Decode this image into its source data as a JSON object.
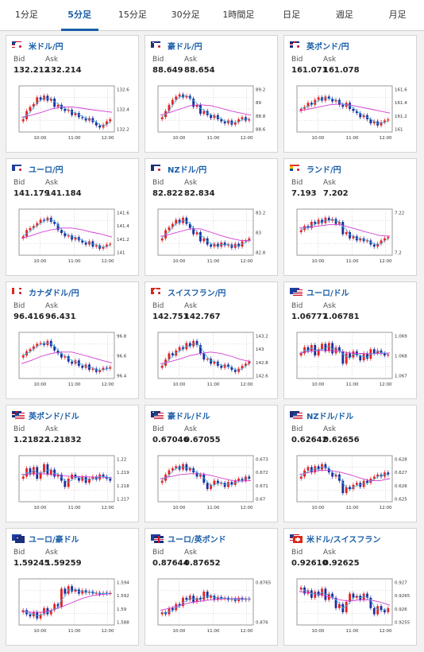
{
  "tabs": [
    "1分足",
    "5分足",
    "15分足",
    "30分足",
    "1時間足",
    "日足",
    "週足",
    "月足"
  ],
  "active_tab": 1,
  "bid_label": "Bid",
  "ask_label": "Ask",
  "colors": {
    "accent": "#1a5ea8",
    "up": "#e32222",
    "down": "#1d2d9c",
    "ma_short": "#3ab0e8",
    "ma_long": "#d23bd2"
  },
  "x_ticks": [
    "10:00",
    "11:00",
    "12:00"
  ],
  "cards": [
    {
      "pair": "米ドル/円",
      "flag": "us-jp",
      "bid": "132.212",
      "ask": "132.214",
      "y_ticks": [
        "132.6",
        "132.4",
        "132.2"
      ],
      "chart_data": {
        "type": "candlestick",
        "closes": [
          0.25,
          0.45,
          0.55,
          0.62,
          0.78,
          0.72,
          0.82,
          0.7,
          0.75,
          0.55,
          0.6,
          0.5,
          0.45,
          0.48,
          0.35,
          0.4,
          0.3,
          0.28,
          0.22,
          0.28,
          0.18,
          0.1,
          0.05,
          0.12,
          0.2,
          0.25
        ],
        "ma": [
          0.3,
          0.35,
          0.42,
          0.5,
          0.55,
          0.55,
          0.52,
          0.48,
          0.45,
          0.42
        ]
      }
    },
    {
      "pair": "豪ドル/円",
      "flag": "au-jp",
      "bid": "88.649",
      "ask": "88.654",
      "y_ticks": [
        "89.2",
        "89",
        "88.8",
        "88.6"
      ],
      "chart_data": {
        "type": "candlestick",
        "closes": [
          0.3,
          0.45,
          0.6,
          0.72,
          0.8,
          0.85,
          0.78,
          0.82,
          0.75,
          0.55,
          0.6,
          0.38,
          0.45,
          0.35,
          0.28,
          0.35,
          0.25,
          0.2,
          0.15,
          0.22,
          0.12,
          0.18,
          0.25,
          0.3,
          0.22,
          0.25
        ],
        "ma": [
          0.35,
          0.42,
          0.5,
          0.58,
          0.6,
          0.58,
          0.52,
          0.45,
          0.4,
          0.35
        ]
      }
    },
    {
      "pair": "英ポンド/円",
      "flag": "gb-jp",
      "bid": "161.071",
      "ask": "161.078",
      "y_ticks": [
        "161.6",
        "161.4",
        "161.2",
        "161"
      ],
      "chart_data": {
        "type": "candlestick",
        "closes": [
          0.5,
          0.55,
          0.65,
          0.6,
          0.72,
          0.78,
          0.7,
          0.8,
          0.75,
          0.68,
          0.72,
          0.6,
          0.55,
          0.65,
          0.5,
          0.45,
          0.4,
          0.3,
          0.35,
          0.25,
          0.15,
          0.2,
          0.1,
          0.18,
          0.22,
          0.25
        ],
        "ma": [
          0.45,
          0.5,
          0.55,
          0.6,
          0.62,
          0.6,
          0.55,
          0.5,
          0.45,
          0.4
        ]
      }
    },
    {
      "pair": "ユーロ/円",
      "flag": "eu-jp",
      "bid": "141.179",
      "ask": "141.184",
      "y_ticks": [
        "141.6",
        "141.4",
        "141.2",
        "141"
      ],
      "chart_data": {
        "type": "candlestick",
        "closes": [
          0.4,
          0.55,
          0.6,
          0.65,
          0.72,
          0.8,
          0.78,
          0.85,
          0.75,
          0.7,
          0.55,
          0.48,
          0.4,
          0.42,
          0.32,
          0.38,
          0.3,
          0.25,
          0.2,
          0.28,
          0.15,
          0.18,
          0.1,
          0.15,
          0.2,
          0.22
        ],
        "ma": [
          0.35,
          0.42,
          0.5,
          0.56,
          0.6,
          0.6,
          0.56,
          0.5,
          0.45,
          0.38
        ]
      }
    },
    {
      "pair": "NZドル/円",
      "flag": "nz-jp",
      "bid": "82.822",
      "ask": "82.834",
      "y_ticks": [
        "83.2",
        "83",
        "82.8"
      ],
      "chart_data": {
        "type": "candlestick",
        "closes": [
          0.35,
          0.55,
          0.62,
          0.7,
          0.8,
          0.72,
          0.85,
          0.7,
          0.6,
          0.45,
          0.5,
          0.28,
          0.35,
          0.2,
          0.15,
          0.22,
          0.15,
          0.25,
          0.18,
          0.2,
          0.12,
          0.22,
          0.15,
          0.28,
          0.3,
          0.35
        ],
        "ma": [
          0.4,
          0.45,
          0.52,
          0.58,
          0.58,
          0.5,
          0.42,
          0.35,
          0.3,
          0.3
        ]
      }
    },
    {
      "pair": "ランド/円",
      "flag": "za-jp",
      "bid": "7.193",
      "ask": "7.202",
      "y_ticks": [
        "7.22",
        "7.2"
      ],
      "chart_data": {
        "type": "candlestick",
        "closes": [
          0.55,
          0.65,
          0.6,
          0.75,
          0.7,
          0.8,
          0.72,
          0.85,
          0.78,
          0.82,
          0.7,
          0.75,
          0.45,
          0.5,
          0.35,
          0.4,
          0.3,
          0.35,
          0.28,
          0.3,
          0.2,
          0.15,
          0.22,
          0.3,
          0.35,
          0.38
        ],
        "ma": [
          0.6,
          0.62,
          0.65,
          0.68,
          0.68,
          0.62,
          0.55,
          0.48,
          0.42,
          0.4
        ]
      }
    },
    {
      "pair": "カナダドル/円",
      "flag": "ca-jp",
      "bid": "96.416",
      "ask": "96.431",
      "y_ticks": [
        "96.8",
        "96.6",
        "96.4"
      ],
      "chart_data": {
        "type": "candlestick",
        "closes": [
          0.5,
          0.6,
          0.65,
          0.72,
          0.78,
          0.8,
          0.75,
          0.85,
          0.72,
          0.62,
          0.55,
          0.45,
          0.48,
          0.35,
          0.3,
          0.38,
          0.25,
          0.2,
          0.28,
          0.15,
          0.18,
          0.1,
          0.15,
          0.2,
          0.18,
          0.22
        ],
        "ma": [
          0.3,
          0.38,
          0.48,
          0.55,
          0.58,
          0.58,
          0.52,
          0.45,
          0.38,
          0.32
        ]
      }
    },
    {
      "pair": "スイスフラン/円",
      "flag": "ch-jp",
      "bid": "142.751",
      "ask": "142.767",
      "y_ticks": [
        "143.2",
        "143",
        "142.8",
        "142.6"
      ],
      "chart_data": {
        "type": "candlestick",
        "closes": [
          0.25,
          0.4,
          0.55,
          0.5,
          0.62,
          0.7,
          0.65,
          0.8,
          0.72,
          0.85,
          0.75,
          0.55,
          0.4,
          0.42,
          0.3,
          0.35,
          0.25,
          0.2,
          0.28,
          0.22,
          0.15,
          0.1,
          0.18,
          0.25,
          0.3,
          0.35
        ],
        "ma": [
          0.3,
          0.35,
          0.42,
          0.5,
          0.55,
          0.58,
          0.55,
          0.48,
          0.4,
          0.35
        ]
      }
    },
    {
      "pair": "ユーロ/ドル",
      "flag": "eu-us",
      "bid": "1.06777",
      "ask": "1.06781",
      "y_ticks": [
        "1.069",
        "1.068",
        "1.067"
      ],
      "chart_data": {
        "type": "candlestick",
        "closes": [
          0.55,
          0.7,
          0.6,
          0.75,
          0.5,
          0.65,
          0.78,
          0.6,
          0.8,
          0.55,
          0.7,
          0.6,
          0.3,
          0.55,
          0.45,
          0.6,
          0.5,
          0.38,
          0.55,
          0.42,
          0.65,
          0.55,
          0.62,
          0.55,
          0.5,
          0.52
        ],
        "ma": [
          0.55,
          0.6,
          0.62,
          0.62,
          0.6,
          0.56,
          0.55,
          0.54,
          0.55,
          0.56
        ]
      }
    },
    {
      "pair": "英ポンド/ドル",
      "flag": "gb-us",
      "bid": "1.21822",
      "ask": "1.21832",
      "y_ticks": [
        "1.22",
        "1.219",
        "1.218",
        "1.217"
      ],
      "chart_data": {
        "type": "candlestick",
        "closes": [
          0.55,
          0.75,
          0.6,
          0.78,
          0.5,
          0.65,
          0.85,
          0.6,
          0.72,
          0.55,
          0.6,
          0.45,
          0.3,
          0.5,
          0.6,
          0.52,
          0.45,
          0.55,
          0.4,
          0.5,
          0.55,
          0.48,
          0.6,
          0.55,
          0.5,
          0.45
        ],
        "ma": [
          0.6,
          0.62,
          0.62,
          0.6,
          0.58,
          0.55,
          0.55,
          0.54,
          0.54,
          0.52
        ]
      }
    },
    {
      "pair": "豪ドル/ドル",
      "flag": "au-us",
      "bid": "0.67046",
      "ask": "0.67055",
      "y_ticks": [
        "0.673",
        "0.672",
        "0.671",
        "0.67"
      ],
      "chart_data": {
        "type": "candlestick",
        "closes": [
          0.45,
          0.6,
          0.7,
          0.75,
          0.8,
          0.72,
          0.85,
          0.7,
          0.75,
          0.65,
          0.55,
          0.6,
          0.4,
          0.25,
          0.35,
          0.45,
          0.38,
          0.4,
          0.3,
          0.42,
          0.35,
          0.45,
          0.5,
          0.45,
          0.55,
          0.5
        ],
        "ma": [
          0.5,
          0.55,
          0.6,
          0.62,
          0.62,
          0.58,
          0.52,
          0.46,
          0.44,
          0.45
        ]
      }
    },
    {
      "pair": "NZドル/ドル",
      "flag": "nz-us",
      "bid": "0.62642",
      "ask": "0.62656",
      "y_ticks": [
        "0.628",
        "0.627",
        "0.626",
        "0.625"
      ],
      "chart_data": {
        "type": "candlestick",
        "closes": [
          0.55,
          0.7,
          0.78,
          0.65,
          0.8,
          0.72,
          0.85,
          0.75,
          0.65,
          0.55,
          0.6,
          0.45,
          0.15,
          0.3,
          0.25,
          0.35,
          0.4,
          0.3,
          0.45,
          0.4,
          0.5,
          0.55,
          0.6,
          0.55,
          0.65,
          0.6
        ],
        "ma": [
          0.6,
          0.65,
          0.7,
          0.7,
          0.66,
          0.6,
          0.52,
          0.45,
          0.45,
          0.5
        ]
      }
    },
    {
      "pair": "ユーロ/豪ドル",
      "flag": "eu-au",
      "bid": "1.59245",
      "ask": "1.59259",
      "y_ticks": [
        "1.594",
        "1.592",
        "1.59",
        "1.588"
      ],
      "chart_data": {
        "type": "candlestick",
        "closes": [
          0.3,
          0.2,
          0.15,
          0.25,
          0.1,
          0.2,
          0.35,
          0.2,
          0.3,
          0.45,
          0.38,
          0.82,
          0.7,
          0.88,
          0.75,
          0.8,
          0.7,
          0.78,
          0.72,
          0.75,
          0.7,
          0.72,
          0.68,
          0.72,
          0.7,
          0.72
        ],
        "ma": [
          0.28,
          0.25,
          0.25,
          0.3,
          0.38,
          0.48,
          0.58,
          0.65,
          0.68,
          0.7
        ]
      }
    },
    {
      "pair": "ユーロ/英ポンド",
      "flag": "eu-gb",
      "bid": "0.87644",
      "ask": "0.87652",
      "y_ticks": [
        "0.8765",
        "0.876"
      ],
      "chart_data": {
        "type": "candlestick",
        "closes": [
          0.25,
          0.2,
          0.35,
          0.3,
          0.45,
          0.4,
          0.6,
          0.55,
          0.65,
          0.5,
          0.6,
          0.55,
          0.75,
          0.6,
          0.65,
          0.55,
          0.62,
          0.58,
          0.6,
          0.55,
          0.58,
          0.52,
          0.6,
          0.55,
          0.58,
          0.56
        ],
        "ma": [
          0.3,
          0.35,
          0.42,
          0.48,
          0.52,
          0.55,
          0.57,
          0.58,
          0.58,
          0.57
        ]
      }
    },
    {
      "pair": "米ドル/スイスフラン",
      "flag": "us-ch",
      "bid": "0.92610",
      "ask": "0.92625",
      "y_ticks": [
        "0.927",
        "0.9265",
        "0.926",
        "0.9255"
      ],
      "chart_data": {
        "type": "candlestick",
        "closes": [
          0.85,
          0.7,
          0.78,
          0.6,
          0.75,
          0.65,
          0.82,
          0.55,
          0.7,
          0.6,
          0.35,
          0.45,
          0.25,
          0.5,
          0.7,
          0.6,
          0.65,
          0.55,
          0.7,
          0.6,
          0.35,
          0.2,
          0.4,
          0.3,
          0.25,
          0.35
        ],
        "ma": [
          0.75,
          0.72,
          0.68,
          0.62,
          0.55,
          0.52,
          0.55,
          0.55,
          0.5,
          0.42
        ]
      }
    }
  ]
}
